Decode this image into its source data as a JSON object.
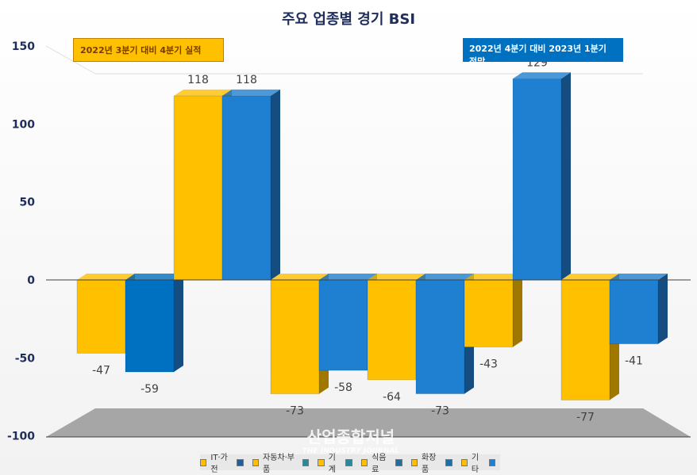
{
  "chart_data": {
    "type": "bar",
    "title": "주요 업종별 경기 BSI",
    "categories": [
      "IT·가전",
      "자동차·부품",
      "기계",
      "식음료",
      "화장품",
      "기타"
    ],
    "series": [
      {
        "name": "2022년 3분기 대비 4분기 실적",
        "color": "#ffc000",
        "values": [
          -47,
          118,
          -73,
          -64,
          -43,
          -77
        ]
      },
      {
        "name": "2022년 4분기 대비 2023년 1분기 전망",
        "color": "#1f7fd0",
        "values": [
          -59,
          118,
          -58,
          -73,
          129,
          -41
        ]
      }
    ],
    "ylim": [
      -100,
      150
    ],
    "yticks": [
      "150",
      "100",
      "50",
      "0",
      "-50",
      "-100"
    ],
    "grid": false,
    "legend": "bottom"
  },
  "watermark": {
    "line1": "산업종합저널",
    "line2": "THE INDUSTRY JOURNAL"
  }
}
